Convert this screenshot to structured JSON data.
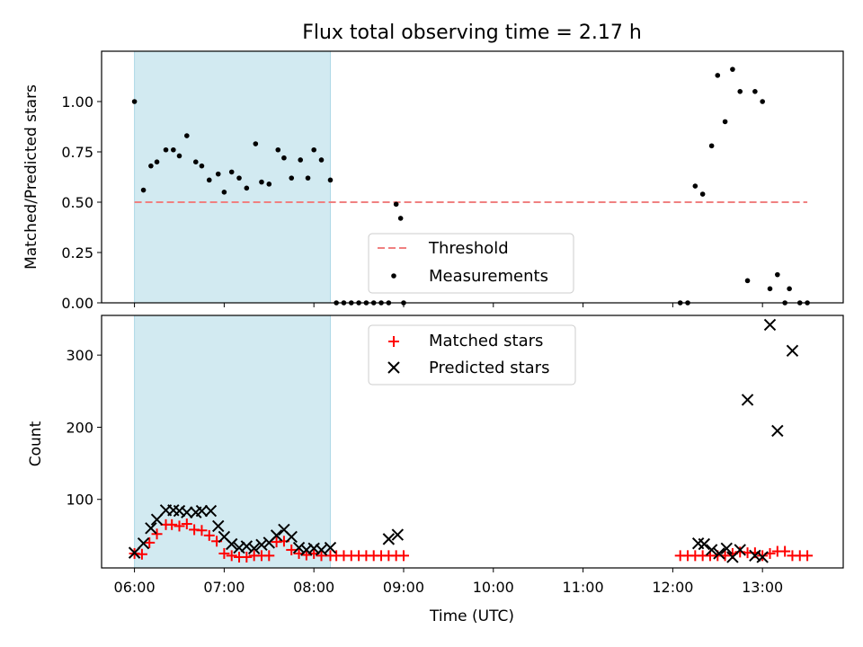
{
  "title": "Flux total observing time = 2.17 h",
  "colors": {
    "highlight": "#add8e6",
    "threshold": "#f08080",
    "matched": "#ff0000",
    "predicted": "#000000",
    "measurements": "#000000"
  },
  "chart_data": [
    {
      "type": "scatter",
      "ylabel": "Matched/Predicted stars",
      "xlabel": "",
      "xlim": [
        "05:38",
        "13:54"
      ],
      "ylim": [
        0,
        1.25
      ],
      "x_ticks": [
        "06:00",
        "07:00",
        "08:00",
        "09:00",
        "10:00",
        "11:00",
        "12:00",
        "13:00"
      ],
      "y_ticks": [
        "0.00",
        "0.25",
        "0.50",
        "0.75",
        "1.00"
      ],
      "grid": false,
      "legend_position": "bottom-center",
      "shaded_interval": [
        "06:00",
        "08:11"
      ],
      "threshold": {
        "name": "Threshold",
        "value": 0.5,
        "x_range": [
          "06:00",
          "13:30"
        ],
        "style": "dashed"
      },
      "series": [
        {
          "name": "Measurements",
          "marker": "dot",
          "points": [
            [
              "06:00",
              1.0
            ],
            [
              "06:06",
              0.56
            ],
            [
              "06:11",
              0.68
            ],
            [
              "06:15",
              0.7
            ],
            [
              "06:21",
              0.76
            ],
            [
              "06:26",
              0.76
            ],
            [
              "06:30",
              0.73
            ],
            [
              "06:35",
              0.83
            ],
            [
              "06:41",
              0.7
            ],
            [
              "06:45",
              0.68
            ],
            [
              "06:50",
              0.61
            ],
            [
              "06:56",
              0.64
            ],
            [
              "07:00",
              0.55
            ],
            [
              "07:05",
              0.65
            ],
            [
              "07:10",
              0.62
            ],
            [
              "07:15",
              0.57
            ],
            [
              "07:21",
              0.79
            ],
            [
              "07:25",
              0.6
            ],
            [
              "07:30",
              0.59
            ],
            [
              "07:36",
              0.76
            ],
            [
              "07:40",
              0.72
            ],
            [
              "07:45",
              0.62
            ],
            [
              "07:51",
              0.71
            ],
            [
              "07:56",
              0.62
            ],
            [
              "08:00",
              0.76
            ],
            [
              "08:05",
              0.71
            ],
            [
              "08:11",
              0.61
            ],
            [
              "08:15",
              0.0
            ],
            [
              "08:20",
              0.0
            ],
            [
              "08:25",
              0.0
            ],
            [
              "08:30",
              0.0
            ],
            [
              "08:35",
              0.0
            ],
            [
              "08:40",
              0.0
            ],
            [
              "08:45",
              0.0
            ],
            [
              "08:50",
              0.0
            ],
            [
              "08:55",
              0.49
            ],
            [
              "08:58",
              0.42
            ],
            [
              "09:00",
              0.0
            ],
            [
              "12:05",
              0.0
            ],
            [
              "12:10",
              0.0
            ],
            [
              "12:15",
              0.58
            ],
            [
              "12:20",
              0.54
            ],
            [
              "12:26",
              0.78
            ],
            [
              "12:30",
              1.13
            ],
            [
              "12:35",
              0.9
            ],
            [
              "12:40",
              1.16
            ],
            [
              "12:45",
              1.05
            ],
            [
              "12:50",
              0.11
            ],
            [
              "12:55",
              1.05
            ],
            [
              "13:00",
              1.0
            ],
            [
              "13:05",
              0.07
            ],
            [
              "13:10",
              0.14
            ],
            [
              "13:15",
              0.0
            ],
            [
              "13:18",
              0.07
            ],
            [
              "13:25",
              0.0
            ],
            [
              "13:30",
              0.0
            ]
          ]
        }
      ]
    },
    {
      "type": "scatter",
      "ylabel": "Count",
      "xlabel": "Time (UTC)",
      "xlim": [
        "05:38",
        "13:54"
      ],
      "ylim": [
        5,
        355
      ],
      "x_ticks": [
        "06:00",
        "07:00",
        "08:00",
        "09:00",
        "10:00",
        "11:00",
        "12:00",
        "13:00"
      ],
      "y_ticks": [
        "100",
        "200",
        "300"
      ],
      "grid": false,
      "legend_position": "top-center",
      "shaded_interval": [
        "06:00",
        "08:11"
      ],
      "series": [
        {
          "name": "Matched stars",
          "marker": "plus",
          "points": [
            [
              "06:00",
              25
            ],
            [
              "06:05",
              24
            ],
            [
              "06:10",
              40
            ],
            [
              "06:15",
              52
            ],
            [
              "06:21",
              65
            ],
            [
              "06:25",
              65
            ],
            [
              "06:30",
              63
            ],
            [
              "06:35",
              66
            ],
            [
              "06:40",
              58
            ],
            [
              "06:45",
              57
            ],
            [
              "06:50",
              50
            ],
            [
              "06:55",
              42
            ],
            [
              "07:00",
              25
            ],
            [
              "07:05",
              22
            ],
            [
              "07:10",
              20
            ],
            [
              "07:15",
              20
            ],
            [
              "07:20",
              22
            ],
            [
              "07:25",
              22
            ],
            [
              "07:30",
              22
            ],
            [
              "07:35",
              41
            ],
            [
              "07:40",
              42
            ],
            [
              "07:45",
              30
            ],
            [
              "07:50",
              25
            ],
            [
              "07:55",
              23
            ],
            [
              "08:00",
              25
            ],
            [
              "08:05",
              22
            ],
            [
              "08:11",
              22
            ],
            [
              "08:15",
              22
            ],
            [
              "08:20",
              22
            ],
            [
              "08:25",
              22
            ],
            [
              "08:30",
              22
            ],
            [
              "08:35",
              22
            ],
            [
              "08:40",
              22
            ],
            [
              "08:45",
              22
            ],
            [
              "08:50",
              22
            ],
            [
              "08:55",
              22
            ],
            [
              "09:00",
              22
            ],
            [
              "12:05",
              22
            ],
            [
              "12:10",
              22
            ],
            [
              "12:15",
              22
            ],
            [
              "12:20",
              22
            ],
            [
              "12:25",
              22
            ],
            [
              "12:30",
              22
            ],
            [
              "12:35",
              22
            ],
            [
              "12:40",
              25
            ],
            [
              "12:45",
              27
            ],
            [
              "12:50",
              26
            ],
            [
              "12:55",
              26
            ],
            [
              "13:00",
              22
            ],
            [
              "13:05",
              25
            ],
            [
              "13:10",
              28
            ],
            [
              "13:15",
              28
            ],
            [
              "13:20",
              22
            ],
            [
              "13:25",
              22
            ],
            [
              "13:30",
              22
            ]
          ]
        },
        {
          "name": "Predicted stars",
          "marker": "x",
          "points": [
            [
              "06:00",
              26
            ],
            [
              "06:06",
              39
            ],
            [
              "06:11",
              60
            ],
            [
              "06:15",
              72
            ],
            [
              "06:21",
              85
            ],
            [
              "06:26",
              85
            ],
            [
              "06:30",
              84
            ],
            [
              "06:35",
              82
            ],
            [
              "06:41",
              82
            ],
            [
              "06:45",
              84
            ],
            [
              "06:51",
              84
            ],
            [
              "06:56",
              63
            ],
            [
              "07:00",
              48
            ],
            [
              "07:05",
              38
            ],
            [
              "07:10",
              33
            ],
            [
              "07:15",
              35
            ],
            [
              "07:20",
              32
            ],
            [
              "07:25",
              37
            ],
            [
              "07:30",
              40
            ],
            [
              "07:35",
              50
            ],
            [
              "07:40",
              58
            ],
            [
              "07:45",
              48
            ],
            [
              "07:50",
              33
            ],
            [
              "07:55",
              30
            ],
            [
              "08:00",
              32
            ],
            [
              "08:05",
              30
            ],
            [
              "08:11",
              33
            ],
            [
              "08:50",
              45
            ],
            [
              "08:56",
              51
            ],
            [
              "12:17",
              39
            ],
            [
              "12:21",
              38
            ],
            [
              "12:26",
              30
            ],
            [
              "12:31",
              25
            ],
            [
              "12:36",
              32
            ],
            [
              "12:40",
              20
            ],
            [
              "12:45",
              30
            ],
            [
              "12:50",
              238
            ],
            [
              "12:55",
              22
            ],
            [
              "13:00",
              20
            ],
            [
              "13:05",
              342
            ],
            [
              "13:10",
              195
            ],
            [
              "13:20",
              306
            ]
          ]
        }
      ]
    }
  ]
}
